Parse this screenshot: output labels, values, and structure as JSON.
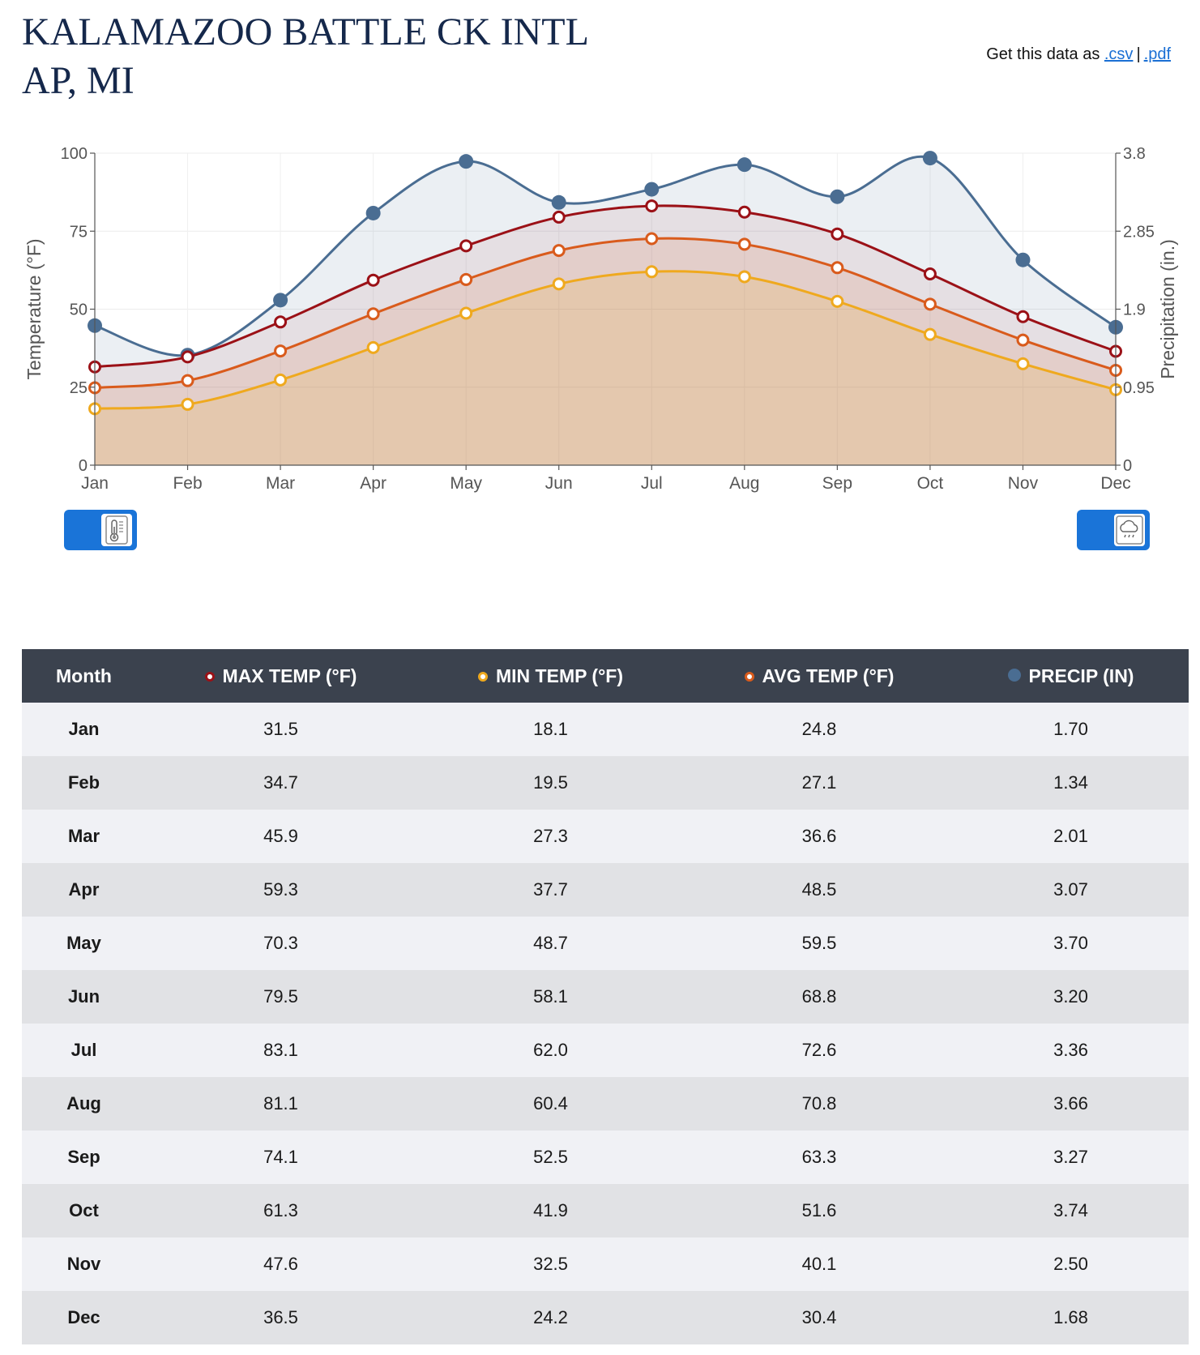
{
  "header": {
    "title_line1": "KALAMAZOO BATTLE CK INTL",
    "title_line2": "AP, MI",
    "get_data_prefix": "Get this data as",
    "csv_link": ".csv",
    "separator": "|",
    "pdf_link": ".pdf"
  },
  "toggles": {
    "temperature_icon": "thermometer-icon",
    "precipitation_icon": "rain-cloud-icon",
    "color": "#1a74d8"
  },
  "chart_data": {
    "type": "line",
    "categories": [
      "Jan",
      "Feb",
      "Mar",
      "Apr",
      "May",
      "Jun",
      "Jul",
      "Aug",
      "Sep",
      "Oct",
      "Nov",
      "Dec"
    ],
    "left_axis": {
      "label": "Temperature (°F)",
      "min": 0,
      "max": 100,
      "ticks": [
        "0",
        "25",
        "50",
        "75",
        "100"
      ]
    },
    "right_axis": {
      "label": "Precipitation (in.)",
      "min": 0,
      "max": 3.8,
      "ticks": [
        "0",
        "0.95",
        "1.9",
        "2.85",
        "3.8"
      ]
    },
    "series": [
      {
        "name": "PRECIP (IN)",
        "axis": "right",
        "color": "#4a6d92",
        "marker": "filled",
        "values": [
          1.7,
          1.34,
          2.01,
          3.07,
          3.7,
          3.2,
          3.36,
          3.66,
          3.27,
          3.74,
          2.5,
          1.68
        ]
      },
      {
        "name": "MAX TEMP (°F)",
        "axis": "left",
        "color": "#9b1117",
        "marker": "hollow",
        "values": [
          31.5,
          34.7,
          45.9,
          59.3,
          70.3,
          79.5,
          83.1,
          81.1,
          74.1,
          61.3,
          47.6,
          36.5
        ]
      },
      {
        "name": "AVG TEMP (°F)",
        "axis": "left",
        "color": "#d95b1c",
        "marker": "hollow",
        "values": [
          24.8,
          27.1,
          36.6,
          48.5,
          59.5,
          68.8,
          72.6,
          70.8,
          63.3,
          51.6,
          40.1,
          30.4
        ]
      },
      {
        "name": "MIN TEMP (°F)",
        "axis": "left",
        "color": "#efa91e",
        "marker": "hollow",
        "values": [
          18.1,
          19.5,
          27.3,
          37.7,
          48.7,
          58.1,
          62.0,
          60.4,
          52.5,
          41.9,
          32.5,
          24.2
        ]
      }
    ],
    "grid": true,
    "area_fill": true
  },
  "table": {
    "headers": {
      "month": "Month",
      "max": "MAX TEMP (°F)",
      "min": "MIN TEMP (°F)",
      "avg": "AVG TEMP (°F)",
      "precip": "PRECIP (IN)"
    },
    "rows": [
      {
        "month": "Jan",
        "max": "31.5",
        "min": "18.1",
        "avg": "24.8",
        "precip": "1.70"
      },
      {
        "month": "Feb",
        "max": "34.7",
        "min": "19.5",
        "avg": "27.1",
        "precip": "1.34"
      },
      {
        "month": "Mar",
        "max": "45.9",
        "min": "27.3",
        "avg": "36.6",
        "precip": "2.01"
      },
      {
        "month": "Apr",
        "max": "59.3",
        "min": "37.7",
        "avg": "48.5",
        "precip": "3.07"
      },
      {
        "month": "May",
        "max": "70.3",
        "min": "48.7",
        "avg": "59.5",
        "precip": "3.70"
      },
      {
        "month": "Jun",
        "max": "79.5",
        "min": "58.1",
        "avg": "68.8",
        "precip": "3.20"
      },
      {
        "month": "Jul",
        "max": "83.1",
        "min": "62.0",
        "avg": "72.6",
        "precip": "3.36"
      },
      {
        "month": "Aug",
        "max": "81.1",
        "min": "60.4",
        "avg": "70.8",
        "precip": "3.66"
      },
      {
        "month": "Sep",
        "max": "74.1",
        "min": "52.5",
        "avg": "63.3",
        "precip": "3.27"
      },
      {
        "month": "Oct",
        "max": "61.3",
        "min": "41.9",
        "avg": "51.6",
        "precip": "3.74"
      },
      {
        "month": "Nov",
        "max": "47.6",
        "min": "32.5",
        "avg": "40.1",
        "precip": "2.50"
      },
      {
        "month": "Dec",
        "max": "36.5",
        "min": "24.2",
        "avg": "30.4",
        "precip": "1.68"
      }
    ]
  }
}
